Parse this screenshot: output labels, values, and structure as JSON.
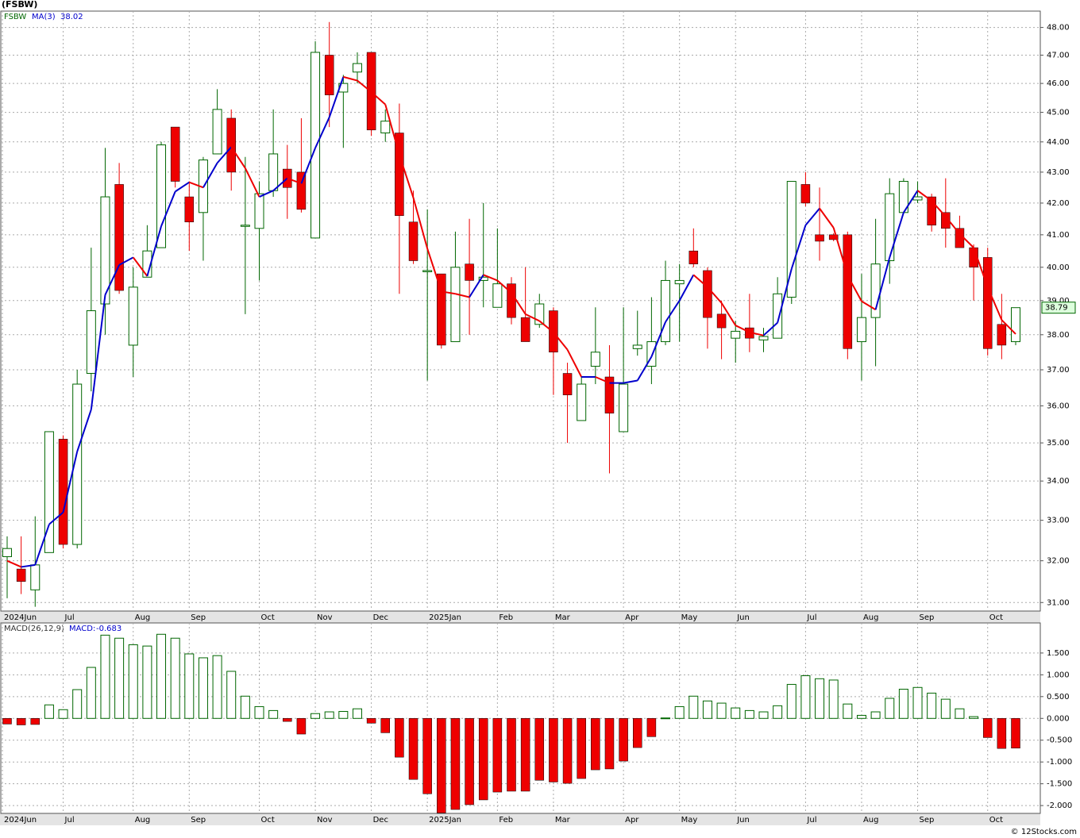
{
  "source": "© 12Stocks.com",
  "chart_data": [
    {
      "type": "candlestick",
      "title": "(FSBW)",
      "log_scale": true,
      "grid": true,
      "ylim": [
        30.8,
        48.6
      ],
      "yticks": [
        {
          "value": 31,
          "label": "31.00"
        },
        {
          "value": 32,
          "label": "32.00"
        },
        {
          "value": 33,
          "label": "33.00"
        },
        {
          "value": 34,
          "label": "34.00"
        },
        {
          "value": 35,
          "label": "35.00"
        },
        {
          "value": 36,
          "label": "36.00"
        },
        {
          "value": 37,
          "label": "37.00"
        },
        {
          "value": 38,
          "label": "38.00"
        },
        {
          "value": 39,
          "label": "39.00"
        },
        {
          "value": 40,
          "label": "40.00"
        },
        {
          "value": 41,
          "label": "41.00"
        },
        {
          "value": 42,
          "label": "42.00"
        },
        {
          "value": 43,
          "label": "43.00"
        },
        {
          "value": 44,
          "label": "44.00"
        },
        {
          "value": 45,
          "label": "45.00"
        },
        {
          "value": 46,
          "label": "46.00"
        },
        {
          "value": 47,
          "label": "47.00"
        },
        {
          "value": 48,
          "label": "48.00"
        }
      ],
      "categories": [
        "2024Jun",
        null,
        null,
        null,
        "Jul",
        null,
        null,
        null,
        null,
        "Aug",
        null,
        null,
        null,
        "Sep",
        null,
        null,
        null,
        null,
        "Oct",
        null,
        null,
        null,
        "Nov",
        null,
        null,
        null,
        "Dec",
        null,
        null,
        null,
        "2025Jan",
        null,
        null,
        null,
        null,
        "Feb",
        null,
        null,
        null,
        "Mar",
        null,
        null,
        null,
        null,
        "Apr",
        null,
        null,
        null,
        "May",
        null,
        null,
        null,
        "Jun",
        null,
        null,
        null,
        null,
        "Jul",
        null,
        null,
        null,
        "Aug",
        null,
        null,
        null,
        "Sep",
        null,
        null,
        null,
        null,
        "Oct",
        null,
        null
      ],
      "series": [
        {
          "name": "FSBW",
          "up_color": "#006600",
          "down_color": "#ee0000",
          "open": [
            32.1,
            31.8,
            31.3,
            32.2,
            35.1,
            32.4,
            36.9,
            38.9,
            42.6,
            37.7,
            39.7,
            40.6,
            44.5,
            42.2,
            41.7,
            43.6,
            44.8,
            41.3,
            41.2,
            42.4,
            43.1,
            43.0,
            40.9,
            47.0,
            45.7,
            46.4,
            47.1,
            44.3,
            44.3,
            41.4,
            39.9,
            39.8,
            37.8,
            40.1,
            39.6,
            38.8,
            39.5,
            38.5,
            38.3,
            38.7,
            36.9,
            35.6,
            37.1,
            36.8,
            35.3,
            37.6,
            37.1,
            37.8,
            39.5,
            40.5,
            39.9,
            38.6,
            37.9,
            38.2,
            37.85,
            37.9,
            39.1,
            42.6,
            41.0,
            41.0,
            41.0,
            37.8,
            38.5,
            40.2,
            41.7,
            42.1,
            42.2,
            41.7,
            41.2,
            40.6,
            40.3,
            38.3,
            37.8
          ],
          "high": [
            32.6,
            32.6,
            33.1,
            35.3,
            35.2,
            37.0,
            40.6,
            43.8,
            43.3,
            40.0,
            41.3,
            44.0,
            44.5,
            42.7,
            43.5,
            45.8,
            45.1,
            43.5,
            42.7,
            45.1,
            43.9,
            44.8,
            47.5,
            48.2,
            46.3,
            47.1,
            47.1,
            45.1,
            45.3,
            42.4,
            41.8,
            39.8,
            41.1,
            41.5,
            42.0,
            41.2,
            39.7,
            40.0,
            39.2,
            38.8,
            37.2,
            36.8,
            38.8,
            37.7,
            38.8,
            38.7,
            39.1,
            40.2,
            40.1,
            41.2,
            40.0,
            39.0,
            38.4,
            39.2,
            38.2,
            39.7,
            42.7,
            43.0,
            42.5,
            41.05,
            41.1,
            39.8,
            41.5,
            42.8,
            42.8,
            42.7,
            42.3,
            42.8,
            41.6,
            40.7,
            40.6,
            39.2,
            38.79
          ],
          "low": [
            31.1,
            31.2,
            30.9,
            32.2,
            32.3,
            32.3,
            36.4,
            38.0,
            39.2,
            36.8,
            39.7,
            40.6,
            42.5,
            40.5,
            40.2,
            43.6,
            42.4,
            38.6,
            39.6,
            42.2,
            41.5,
            41.7,
            40.9,
            44.5,
            43.8,
            46.0,
            44.2,
            44.0,
            39.2,
            40.1,
            36.7,
            37.6,
            37.8,
            38.0,
            38.8,
            38.8,
            38.3,
            37.8,
            38.2,
            36.3,
            35.0,
            35.6,
            36.6,
            34.2,
            35.3,
            37.4,
            36.6,
            37.7,
            37.8,
            40.0,
            37.6,
            37.3,
            37.2,
            37.5,
            37.5,
            37.9,
            38.9,
            41.9,
            40.2,
            40.8,
            37.3,
            36.7,
            37.1,
            39.5,
            41.7,
            42.0,
            41.1,
            40.6,
            40.6,
            39.0,
            37.4,
            37.3,
            37.7
          ],
          "close": [
            32.3,
            31.5,
            31.9,
            35.3,
            32.4,
            36.6,
            38.7,
            42.2,
            39.3,
            39.4,
            40.5,
            43.9,
            42.7,
            41.4,
            43.4,
            45.1,
            43.0,
            41.3,
            42.3,
            43.6,
            42.5,
            41.8,
            47.1,
            45.6,
            46.0,
            46.7,
            44.4,
            44.7,
            41.6,
            40.2,
            39.9,
            37.7,
            40.0,
            39.6,
            39.7,
            39.5,
            38.5,
            37.8,
            38.9,
            37.5,
            36.3,
            36.6,
            37.5,
            35.8,
            36.6,
            37.7,
            37.8,
            39.6,
            39.6,
            40.1,
            38.5,
            38.2,
            38.1,
            37.9,
            37.95,
            39.2,
            42.7,
            42.0,
            40.8,
            40.85,
            37.6,
            38.5,
            40.1,
            42.3,
            42.7,
            42.2,
            41.3,
            41.2,
            40.6,
            40.0,
            37.6,
            37.7,
            38.79
          ]
        },
        {
          "name": "MA(3)",
          "up_color": "#0000cc",
          "down_color": "#ee0000",
          "values": [
            32.0,
            31.85,
            31.9,
            32.9,
            33.2,
            34.77,
            35.9,
            39.17,
            40.07,
            40.3,
            39.73,
            41.27,
            42.37,
            42.67,
            42.5,
            43.3,
            43.83,
            43.13,
            42.2,
            42.4,
            42.8,
            42.63,
            43.8,
            44.83,
            46.23,
            46.1,
            45.7,
            45.27,
            43.57,
            42.17,
            40.57,
            39.27,
            39.2,
            39.1,
            39.77,
            39.6,
            39.23,
            38.6,
            38.4,
            38.07,
            37.57,
            36.8,
            36.8,
            36.63,
            36.63,
            36.7,
            37.37,
            38.37,
            39.0,
            39.77,
            39.4,
            38.93,
            38.27,
            38.07,
            37.98,
            38.35,
            39.95,
            41.3,
            41.83,
            41.22,
            39.75,
            38.98,
            38.73,
            40.3,
            41.7,
            42.4,
            42.07,
            41.57,
            41.03,
            40.6,
            39.4,
            38.43,
            38.02
          ]
        }
      ]
    },
    {
      "type": "bar",
      "title": "MACD(26,12,9)",
      "grid": true,
      "ylim": [
        -2.18,
        2.19
      ],
      "yticks": [
        {
          "value": 1.5,
          "label": "1.500"
        },
        {
          "value": 1,
          "label": "1.000"
        },
        {
          "value": 0.5,
          "label": "0.500"
        },
        {
          "value": 0,
          "label": "0.000"
        },
        {
          "value": -0.5,
          "label": "-0.500"
        },
        {
          "value": -1,
          "label": "-1.000"
        },
        {
          "value": -1.5,
          "label": "-1.500"
        },
        {
          "value": -2,
          "label": "-2.000"
        }
      ],
      "categories": [
        "2024Jun",
        null,
        null,
        null,
        "Jul",
        null,
        null,
        null,
        null,
        "Aug",
        null,
        null,
        null,
        "Sep",
        null,
        null,
        null,
        null,
        "Oct",
        null,
        null,
        null,
        "Nov",
        null,
        null,
        null,
        "Dec",
        null,
        null,
        null,
        "2025Jan",
        null,
        null,
        null,
        null,
        "Feb",
        null,
        null,
        null,
        "Mar",
        null,
        null,
        null,
        null,
        "Apr",
        null,
        null,
        null,
        "May",
        null,
        null,
        null,
        "Jun",
        null,
        null,
        null,
        null,
        "Jul",
        null,
        null,
        null,
        "Aug",
        null,
        null,
        null,
        "Sep",
        null,
        null,
        null,
        null,
        "Oct",
        null,
        null
      ],
      "series": [
        {
          "name": "MACD:",
          "up_color": "#006600",
          "down_color": "#ee0000",
          "values": [
            -0.13,
            -0.15,
            -0.14,
            0.31,
            0.2,
            0.66,
            1.17,
            1.91,
            1.84,
            1.69,
            1.66,
            1.93,
            1.84,
            1.48,
            1.39,
            1.44,
            1.08,
            0.51,
            0.27,
            0.18,
            -0.07,
            -0.36,
            0.11,
            0.15,
            0.16,
            0.22,
            -0.11,
            -0.33,
            -0.89,
            -1.4,
            -1.73,
            -2.17,
            -2.09,
            -1.98,
            -1.87,
            -1.69,
            -1.67,
            -1.67,
            -1.42,
            -1.46,
            -1.49,
            -1.38,
            -1.18,
            -1.16,
            -0.98,
            -0.67,
            -0.42,
            0.01,
            0.27,
            0.51,
            0.4,
            0.35,
            0.24,
            0.18,
            0.15,
            0.29,
            0.78,
            0.98,
            0.91,
            0.88,
            0.33,
            0.07,
            0.15,
            0.46,
            0.67,
            0.71,
            0.58,
            0.44,
            0.22,
            0.04,
            -0.44,
            -0.69,
            -0.683
          ]
        }
      ]
    }
  ]
}
